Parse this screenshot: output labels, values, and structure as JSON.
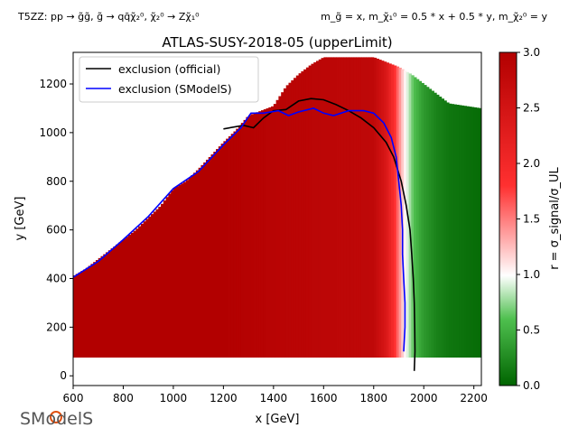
{
  "header": {
    "process": "T5ZZ: pp → g̃g̃, g̃ → qq̄χ̃₂⁰, χ̃₂⁰ → Zχ̃₁⁰",
    "mass_relations": "m_g̃ = x, m_χ̃₁⁰ = 0.5 * x + 0.5 * y, m_χ̃₂⁰ = y"
  },
  "logo": {
    "text": "SModelS"
  },
  "colors": {
    "exclusion_official": "#000000",
    "exclusion_smodels": "#0000ff",
    "cmap_low": "#006400",
    "cmap_mid": "#ffffff",
    "cmap_high": "#b20000"
  },
  "chart_data": {
    "type": "heatmap",
    "title": "ATLAS-SUSY-2018-05 (upperLimit)",
    "xlabel": "x [GeV]",
    "ylabel": "y [GeV]",
    "xlim": [
      600,
      2230
    ],
    "ylim": [
      -40,
      1330
    ],
    "x_ticks": [
      600,
      800,
      1000,
      1200,
      1400,
      1600,
      1800,
      2000,
      2200
    ],
    "y_ticks": [
      0,
      200,
      400,
      600,
      800,
      1000,
      1200
    ],
    "grid": false,
    "legend": {
      "placement": "top-left",
      "entries": [
        {
          "label": "exclusion (official)",
          "color": "#000000"
        },
        {
          "label": "exclusion (SModelS)",
          "color": "#0000ff"
        }
      ]
    },
    "colorbar": {
      "label": "r = σ_signal/σ_UL",
      "min": 0.0,
      "max": 3.0,
      "ticks": [
        0.0,
        0.5,
        1.0,
        1.5,
        2.0,
        2.5,
        3.0
      ]
    },
    "region": {
      "y_min": 75,
      "left_edge": [
        [
          600,
          410
        ],
        [
          650,
          440
        ],
        [
          700,
          480
        ],
        [
          750,
          520
        ],
        [
          800,
          560
        ],
        [
          850,
          600
        ],
        [
          900,
          650
        ],
        [
          950,
          700
        ],
        [
          1000,
          770
        ],
        [
          1050,
          800
        ],
        [
          1100,
          850
        ],
        [
          1150,
          905
        ],
        [
          1200,
          960
        ],
        [
          1250,
          1010
        ],
        [
          1300,
          1070
        ]
      ],
      "upper_edge": [
        [
          1300,
          1070
        ],
        [
          1400,
          1110
        ],
        [
          1450,
          1190
        ],
        [
          1500,
          1240
        ],
        [
          1550,
          1280
        ],
        [
          1600,
          1310
        ],
        [
          1800,
          1310
        ],
        [
          1850,
          1290
        ],
        [
          1900,
          1270
        ],
        [
          1950,
          1240
        ],
        [
          2000,
          1200
        ],
        [
          2050,
          1160
        ],
        [
          2100,
          1120
        ],
        [
          2230,
          1100
        ]
      ]
    },
    "r_profile": [
      [
        600,
        3.0
      ],
      [
        1200,
        3.0
      ],
      [
        1400,
        2.9
      ],
      [
        1800,
        2.8
      ],
      [
        1850,
        2.4
      ],
      [
        1880,
        1.9
      ],
      [
        1900,
        1.5
      ],
      [
        1920,
        1.1
      ],
      [
        1940,
        0.85
      ],
      [
        1960,
        0.6
      ],
      [
        2000,
        0.35
      ],
      [
        2050,
        0.2
      ],
      [
        2100,
        0.12
      ],
      [
        2230,
        0.05
      ]
    ],
    "series": [
      {
        "name": "exclusion (official)",
        "points": [
          [
            1200,
            1015
          ],
          [
            1280,
            1030
          ],
          [
            1320,
            1020
          ],
          [
            1360,
            1060
          ],
          [
            1400,
            1090
          ],
          [
            1450,
            1095
          ],
          [
            1500,
            1130
          ],
          [
            1550,
            1140
          ],
          [
            1600,
            1135
          ],
          [
            1650,
            1115
          ],
          [
            1700,
            1090
          ],
          [
            1750,
            1060
          ],
          [
            1800,
            1020
          ],
          [
            1850,
            960
          ],
          [
            1880,
            900
          ],
          [
            1910,
            800
          ],
          [
            1930,
            700
          ],
          [
            1945,
            600
          ],
          [
            1952,
            500
          ],
          [
            1958,
            400
          ],
          [
            1962,
            300
          ],
          [
            1964,
            200
          ],
          [
            1965,
            100
          ],
          [
            1962,
            20
          ]
        ]
      },
      {
        "name": "exclusion (SModelS)",
        "points": [
          [
            600,
            405
          ],
          [
            700,
            470
          ],
          [
            800,
            560
          ],
          [
            900,
            655
          ],
          [
            1000,
            770
          ],
          [
            1100,
            840
          ],
          [
            1200,
            950
          ],
          [
            1270,
            1020
          ],
          [
            1310,
            1080
          ],
          [
            1360,
            1080
          ],
          [
            1420,
            1090
          ],
          [
            1460,
            1070
          ],
          [
            1500,
            1085
          ],
          [
            1560,
            1100
          ],
          [
            1600,
            1080
          ],
          [
            1640,
            1070
          ],
          [
            1700,
            1090
          ],
          [
            1760,
            1090
          ],
          [
            1800,
            1080
          ],
          [
            1840,
            1040
          ],
          [
            1870,
            980
          ],
          [
            1890,
            900
          ],
          [
            1900,
            800
          ],
          [
            1910,
            700
          ],
          [
            1915,
            600
          ],
          [
            1915,
            500
          ],
          [
            1920,
            400
          ],
          [
            1925,
            300
          ],
          [
            1925,
            200
          ],
          [
            1920,
            100
          ]
        ]
      }
    ]
  }
}
